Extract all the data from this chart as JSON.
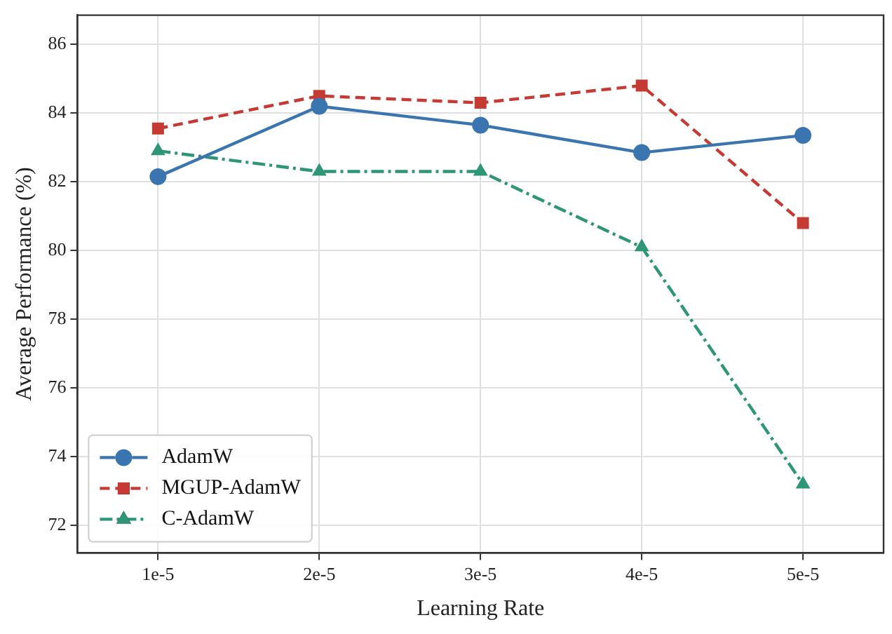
{
  "chart_data": {
    "type": "line",
    "xlabel": "Learning Rate",
    "ylabel": "Average Performance (%)",
    "categories": [
      "1e-5",
      "2e-5",
      "3e-5",
      "4e-5",
      "5e-5"
    ],
    "series": [
      {
        "name": "AdamW",
        "color": "#3b75af",
        "marker": "circle",
        "line_style": "solid",
        "values": [
          82.15,
          84.2,
          83.65,
          82.85,
          83.35
        ]
      },
      {
        "name": "MGUP-AdamW",
        "color": "#c53a32",
        "marker": "square",
        "line_style": "dashed",
        "values": [
          83.55,
          84.5,
          84.3,
          84.8,
          80.8
        ]
      },
      {
        "name": "C-AdamW",
        "color": "#2e9677",
        "marker": "triangle",
        "line_style": "dashdot",
        "values": [
          82.9,
          82.3,
          82.3,
          80.1,
          73.2
        ]
      }
    ],
    "ylim": [
      71.2,
      86.85
    ],
    "yticks": [
      72,
      74,
      76,
      78,
      80,
      82,
      84,
      86
    ],
    "grid": true,
    "legend": "bottom left"
  }
}
